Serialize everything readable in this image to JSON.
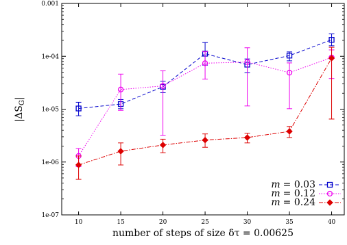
{
  "chart_data": {
    "type": "line",
    "xlabel": "number of steps of size δτ = 0.00625",
    "ylabel": "|ΔS_G|",
    "ylabel_main": "|ΔS",
    "ylabel_sub": "G",
    "ylabel_close": "|",
    "x_ticks": [
      10,
      15,
      20,
      25,
      30,
      35,
      40
    ],
    "y_scale": "log",
    "y_ticks": [
      1e-07,
      1e-06,
      1e-05,
      0.0001,
      0.001
    ],
    "y_tick_labels": [
      "1e-07",
      "1e-06",
      "1e-05",
      "1e-04",
      "0.001"
    ],
    "xlim": [
      8,
      41.5
    ],
    "ylim": [
      1e-07,
      0.001
    ],
    "legend_position": "bottom-right",
    "series": [
      {
        "name": "m = 0.03",
        "name_prefix": "m",
        "name_value": "= 0.03",
        "color": "#0000cc",
        "dash": "5,3",
        "marker": "square",
        "x": [
          10,
          15,
          20,
          25,
          30,
          35,
          40
        ],
        "y": [
          1.03e-05,
          1.25e-05,
          2.65e-05,
          0.000112,
          6.95e-05,
          0.000103,
          0.000205
        ],
        "err_low": [
          7.5e-06,
          1.02e-05,
          2.05e-05,
          6.8e-05,
          4.9e-05,
          8.2e-05,
          0.000158
        ],
        "err_high": [
          1.35e-05,
          1.52e-05,
          3.38e-05,
          0.000182,
          8.9e-05,
          0.000121,
          0.000265
        ]
      },
      {
        "name": "m = 0.12",
        "name_prefix": "m",
        "name_value": "= 0.12",
        "color": "#ee00ee",
        "dash": "1.5,2",
        "marker": "circle",
        "x": [
          10,
          15,
          20,
          25,
          30,
          35,
          40
        ],
        "y": [
          1.3e-06,
          2.35e-05,
          2.75e-05,
          7.4e-05,
          7.8e-05,
          4.9e-05,
          9.5e-05
        ],
        "err_low": [
          8.2e-07,
          9.5e-06,
          3.2e-06,
          3.7e-05,
          1.15e-05,
          1.02e-05,
          3.8e-05
        ],
        "err_high": [
          1.8e-06,
          4.6e-05,
          5.3e-05,
          0.000122,
          0.000145,
          7.5e-05,
          0.000132
        ]
      },
      {
        "name": "m = 0.24",
        "name_prefix": "m",
        "name_value": "= 0.24",
        "color": "#dd0000",
        "dash": "6,2,1.5,2",
        "marker": "diamond",
        "x": [
          10,
          15,
          20,
          25,
          30,
          35,
          40
        ],
        "y": [
          8.8e-07,
          1.6e-06,
          2.1e-06,
          2.6e-06,
          2.9e-06,
          3.8e-06,
          9.2e-05
        ],
        "err_low": [
          4.7e-07,
          8.8e-07,
          1.5e-06,
          1.9e-06,
          2.3e-06,
          2.9e-06,
          6.5e-06
        ],
        "err_high": [
          1.3e-06,
          2.3e-06,
          2.7e-06,
          3.4e-06,
          3.5e-06,
          4.7e-06,
          0.000148
        ]
      }
    ]
  }
}
